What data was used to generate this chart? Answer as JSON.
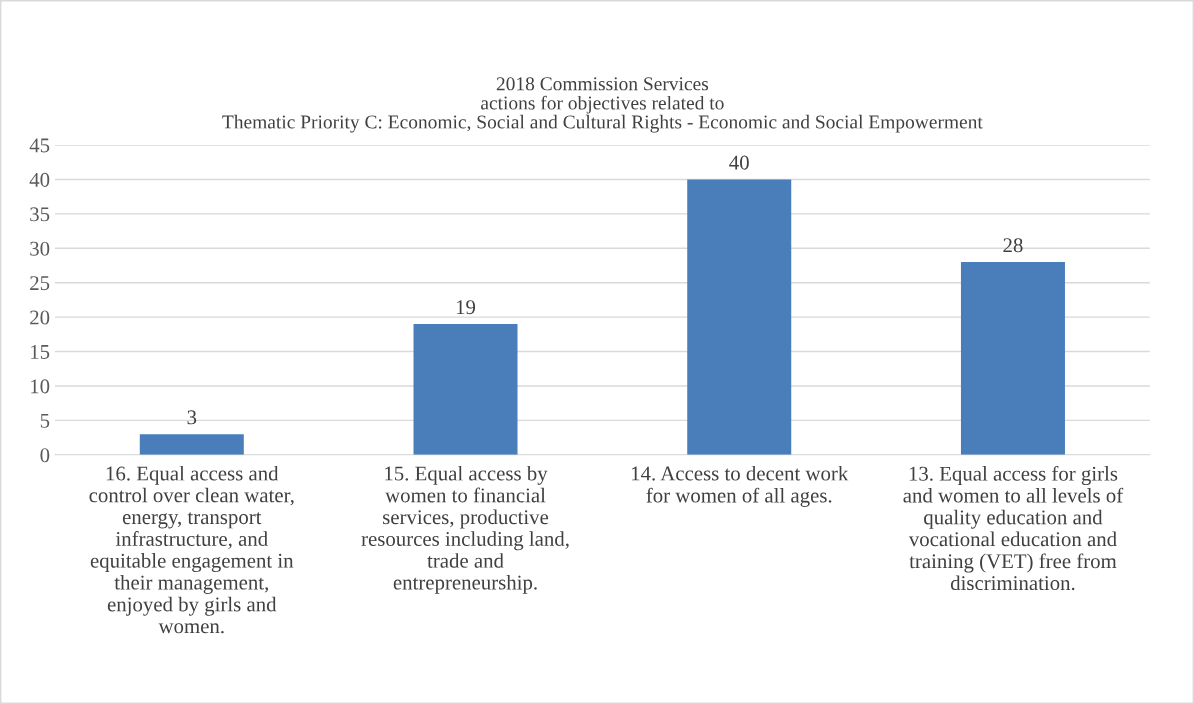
{
  "chart_data": {
    "type": "bar",
    "title": "2018 Commission Services\nactions for objectives related to\nThematic Priority C: Economic, Social and Cultural Rights - Economic and Social Empowerment",
    "categories": [
      "16. Equal access and\ncontrol over clean water,\nenergy, transport\ninfrastructure, and\nequitable engagement in\ntheir management,\nenjoyed by girls and\nwomen.",
      "15. Equal access by\nwomen to financial\nservices, productive\nresources including land,\ntrade and\nentrepreneurship.",
      "14. Access to decent work\nfor women of all ages.",
      "13. Equal access for girls\nand women to all levels of\nquality education and\nvocational education and\ntraining (VET) free from\ndiscrimination."
    ],
    "values": [
      3,
      19,
      40,
      28
    ],
    "color": "#4a7ebb",
    "ylim": [
      0,
      45
    ],
    "yticks": [
      0,
      5,
      10,
      15,
      20,
      25,
      30,
      35,
      40,
      45
    ],
    "grid": "y",
    "data_labels": true,
    "legend": false
  }
}
